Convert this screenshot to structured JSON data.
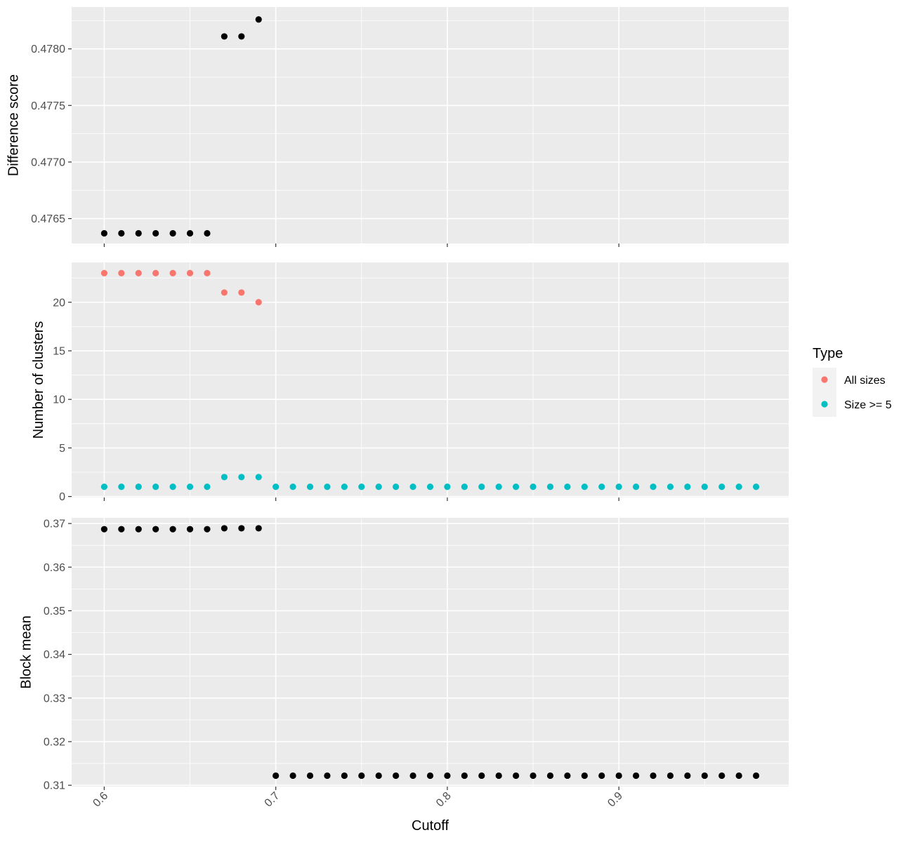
{
  "chart_data": {
    "type": "scatter",
    "x_label": "Cutoff",
    "x_range": [
      0.581,
      0.999
    ],
    "x_ticks": [
      0.6,
      0.7,
      0.8,
      0.9
    ],
    "x_tick_labels": [
      "0.6",
      "0.7",
      "0.8",
      "0.9"
    ],
    "x_tick_rotation_deg": 45,
    "grid": true,
    "panel_background": "#ebebeb",
    "panels": [
      {
        "id": "difference",
        "ylabel": "Difference score",
        "ylim": [
          0.47628,
          0.47837
        ],
        "y_ticks": [
          0.4765,
          0.477,
          0.4775,
          0.478
        ],
        "y_tick_labels": [
          "0.4765",
          "0.4770",
          "0.4775",
          "0.4780"
        ],
        "series": [
          {
            "color": "#000000",
            "points": [
              [
                0.6,
                0.47637
              ],
              [
                0.61,
                0.47637
              ],
              [
                0.62,
                0.47637
              ],
              [
                0.63,
                0.47637
              ],
              [
                0.64,
                0.47637
              ],
              [
                0.65,
                0.47637
              ],
              [
                0.66,
                0.47637
              ],
              [
                0.67,
                0.47811
              ],
              [
                0.68,
                0.47811
              ],
              [
                0.69,
                0.47826
              ]
            ]
          }
        ]
      },
      {
        "id": "clusters",
        "ylabel": "Number of clusters",
        "ylim": [
          -0.1,
          24.1
        ],
        "y_ticks": [
          0,
          5,
          10,
          15,
          20
        ],
        "y_tick_labels": [
          "0",
          "5",
          "10",
          "15",
          "20"
        ],
        "series": [
          {
            "name": "All sizes",
            "color": "#f8766d",
            "points": [
              [
                0.6,
                23
              ],
              [
                0.61,
                23
              ],
              [
                0.62,
                23
              ],
              [
                0.63,
                23
              ],
              [
                0.64,
                23
              ],
              [
                0.65,
                23
              ],
              [
                0.66,
                23
              ],
              [
                0.67,
                21
              ],
              [
                0.68,
                21
              ],
              [
                0.69,
                20
              ]
            ]
          },
          {
            "name": "Size >= 5",
            "color": "#00bfc4",
            "points": [
              [
                0.6,
                1
              ],
              [
                0.61,
                1
              ],
              [
                0.62,
                1
              ],
              [
                0.63,
                1
              ],
              [
                0.64,
                1
              ],
              [
                0.65,
                1
              ],
              [
                0.66,
                1
              ],
              [
                0.67,
                2
              ],
              [
                0.68,
                2
              ],
              [
                0.69,
                2
              ],
              [
                0.7,
                1
              ],
              [
                0.71,
                1
              ],
              [
                0.72,
                1
              ],
              [
                0.73,
                1
              ],
              [
                0.74,
                1
              ],
              [
                0.75,
                1
              ],
              [
                0.76,
                1
              ],
              [
                0.77,
                1
              ],
              [
                0.78,
                1
              ],
              [
                0.79,
                1
              ],
              [
                0.8,
                1
              ],
              [
                0.81,
                1
              ],
              [
                0.82,
                1
              ],
              [
                0.83,
                1
              ],
              [
                0.84,
                1
              ],
              [
                0.85,
                1
              ],
              [
                0.86,
                1
              ],
              [
                0.87,
                1
              ],
              [
                0.88,
                1
              ],
              [
                0.89,
                1
              ],
              [
                0.9,
                1
              ],
              [
                0.91,
                1
              ],
              [
                0.92,
                1
              ],
              [
                0.93,
                1
              ],
              [
                0.94,
                1
              ],
              [
                0.95,
                1
              ],
              [
                0.96,
                1
              ],
              [
                0.97,
                1
              ],
              [
                0.98,
                1
              ]
            ]
          }
        ]
      },
      {
        "id": "blockmean",
        "ylabel": "Block mean",
        "ylim": [
          0.3097,
          0.3713
        ],
        "y_ticks": [
          0.31,
          0.32,
          0.33,
          0.34,
          0.35,
          0.36,
          0.37
        ],
        "y_tick_labels": [
          "0.31",
          "0.32",
          "0.33",
          "0.34",
          "0.35",
          "0.36",
          "0.37"
        ],
        "series": [
          {
            "color": "#000000",
            "points": [
              [
                0.6,
                0.3687
              ],
              [
                0.61,
                0.3687
              ],
              [
                0.62,
                0.3687
              ],
              [
                0.63,
                0.3687
              ],
              [
                0.64,
                0.3687
              ],
              [
                0.65,
                0.3687
              ],
              [
                0.66,
                0.3687
              ],
              [
                0.67,
                0.3689
              ],
              [
                0.68,
                0.3689
              ],
              [
                0.69,
                0.3689
              ],
              [
                0.7,
                0.3122
              ],
              [
                0.71,
                0.3122
              ],
              [
                0.72,
                0.3122
              ],
              [
                0.73,
                0.3122
              ],
              [
                0.74,
                0.3122
              ],
              [
                0.75,
                0.3122
              ],
              [
                0.76,
                0.3122
              ],
              [
                0.77,
                0.3122
              ],
              [
                0.78,
                0.3122
              ],
              [
                0.79,
                0.3122
              ],
              [
                0.8,
                0.3122
              ],
              [
                0.81,
                0.3122
              ],
              [
                0.82,
                0.3122
              ],
              [
                0.83,
                0.3122
              ],
              [
                0.84,
                0.3122
              ],
              [
                0.85,
                0.3122
              ],
              [
                0.86,
                0.3122
              ],
              [
                0.87,
                0.3122
              ],
              [
                0.88,
                0.3122
              ],
              [
                0.89,
                0.3122
              ],
              [
                0.9,
                0.3122
              ],
              [
                0.91,
                0.3122
              ],
              [
                0.92,
                0.3122
              ],
              [
                0.93,
                0.3122
              ],
              [
                0.94,
                0.3122
              ],
              [
                0.95,
                0.3122
              ],
              [
                0.96,
                0.3122
              ],
              [
                0.97,
                0.3122
              ],
              [
                0.98,
                0.3122
              ]
            ]
          }
        ]
      }
    ],
    "legend": {
      "title": "Type",
      "position": "right",
      "entries": [
        {
          "label": "All sizes",
          "color": "#f8766d"
        },
        {
          "label": "Size >= 5",
          "color": "#00bfc4"
        }
      ]
    }
  }
}
